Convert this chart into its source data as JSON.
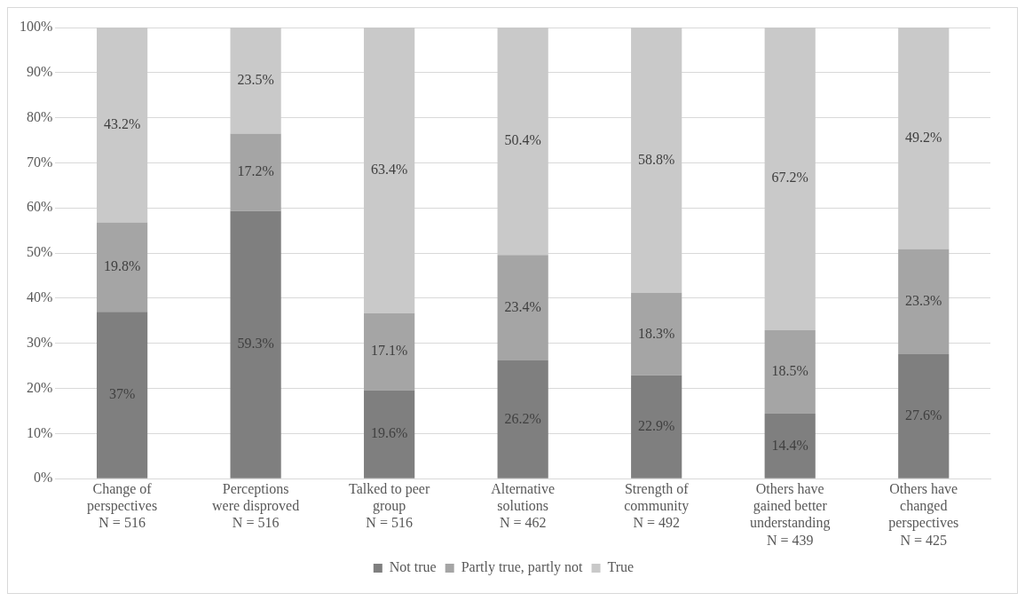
{
  "chart_data": {
    "type": "bar",
    "stacked": true,
    "categories": [
      "Change of\nperspectives\nN = 516",
      "Perceptions\nwere disproved\nN = 516",
      "Talked to peer\ngroup\nN = 516",
      "Alternative\nsolutions\nN = 462",
      "Strength of\ncommunity\nN = 492",
      "Others have\ngained better\nunderstanding\nN = 439",
      "Others have\nchanged\nperspectives\nN = 425"
    ],
    "series": [
      {
        "name": "Not true",
        "color": "#7f7f7f",
        "values": [
          37,
          59.3,
          19.6,
          26.2,
          22.9,
          14.4,
          27.6
        ],
        "value_labels": [
          "37%",
          "59.3%",
          "19.6%",
          "26.2%",
          "22.9%",
          "14.4%",
          "27.6%"
        ]
      },
      {
        "name": "Partly true, partly not",
        "color": "#a5a5a5",
        "values": [
          19.8,
          17.2,
          17.1,
          23.4,
          18.3,
          18.5,
          23.3
        ],
        "value_labels": [
          "19.8%",
          "17.2%",
          "17.1%",
          "23.4%",
          "18.3%",
          "18.5%",
          "23.3%"
        ]
      },
      {
        "name": "True",
        "color": "#c9c9c9",
        "values": [
          43.2,
          23.5,
          63.4,
          50.4,
          58.8,
          67.2,
          49.2
        ],
        "value_labels": [
          "43.2%",
          "23.5%",
          "63.4%",
          "50.4%",
          "58.8%",
          "67.2%",
          "49.2%"
        ]
      }
    ],
    "ylim": [
      0,
      100
    ],
    "yticks": [
      {
        "value": 0,
        "label": "0%"
      },
      {
        "value": 10,
        "label": "10%"
      },
      {
        "value": 20,
        "label": "20%"
      },
      {
        "value": 30,
        "label": "30%"
      },
      {
        "value": 40,
        "label": "40%"
      },
      {
        "value": 50,
        "label": "50%"
      },
      {
        "value": 60,
        "label": "60%"
      },
      {
        "value": 70,
        "label": "70%"
      },
      {
        "value": 80,
        "label": "80%"
      },
      {
        "value": 90,
        "label": "90%"
      },
      {
        "value": 100,
        "label": "100%"
      }
    ],
    "grid": "y",
    "legend": "bottom"
  }
}
